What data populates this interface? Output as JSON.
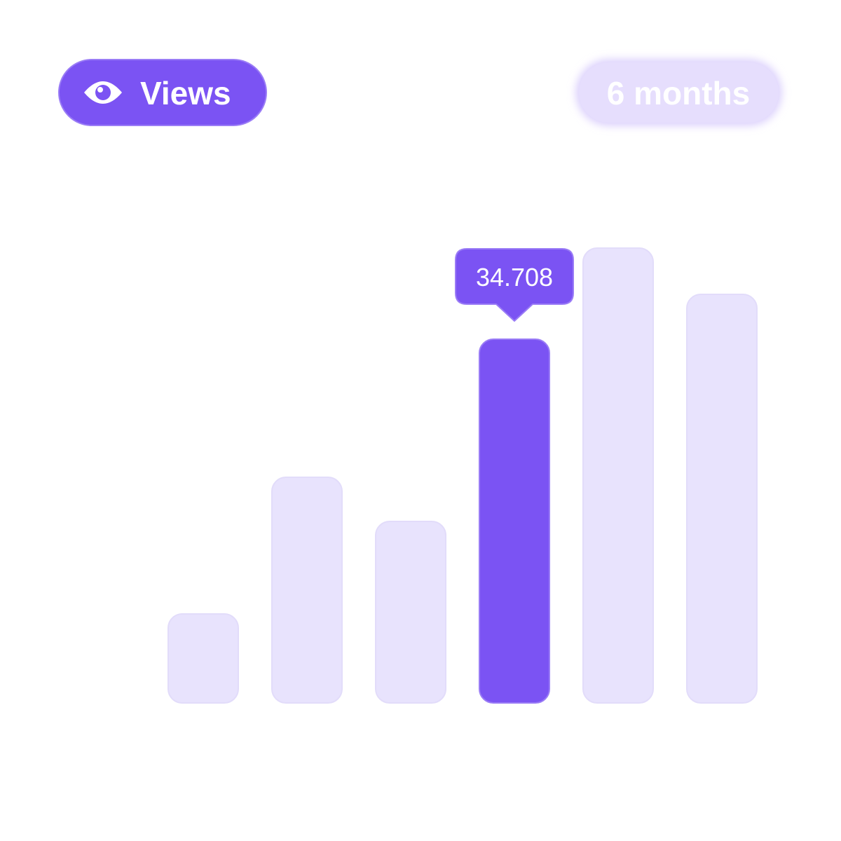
{
  "controls": {
    "metric": "Views",
    "period": "6 months"
  },
  "chart_data": {
    "type": "bar",
    "values": [
      8.49,
      21.53,
      17.32,
      34.708,
      43.4,
      38.99
    ],
    "color": "#e8e3fd",
    "highlight_color": "#7b53f3",
    "highlight": 3
  }
}
